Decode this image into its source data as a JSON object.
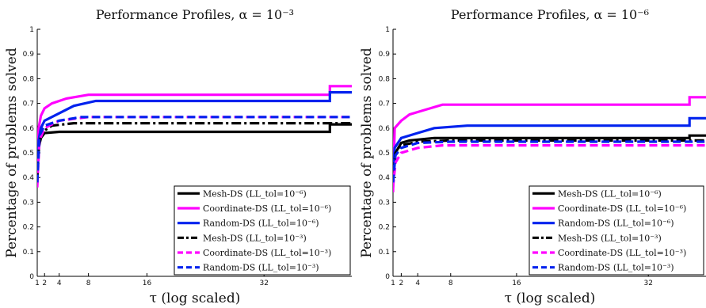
{
  "chart_data": [
    {
      "type": "line",
      "title": "Performance Profiles, α = 10⁻³",
      "xlabel": "τ (log scaled)",
      "ylabel": "Percentage of problems solved",
      "x_ticks": [
        1,
        2,
        4,
        8,
        16,
        32
      ],
      "y_ticks": [
        "0",
        "0.1",
        "0.2",
        "0.3",
        "0.4",
        "0.5",
        "0.6",
        "0.7",
        "0.8",
        "0.9",
        "1"
      ],
      "xlim": [
        1,
        44
      ],
      "ylim": [
        0,
        1
      ],
      "x_scale": "linear-ticks",
      "legend_position": "bottom-right",
      "series": [
        {
          "name": "Mesh-DS (LL_tol=10⁻⁶)",
          "color": "#000000",
          "dash": "solid",
          "points": [
            [
              1,
              0.4
            ],
            [
              1.2,
              0.52
            ],
            [
              1.5,
              0.56
            ],
            [
              2,
              0.58
            ],
            [
              4,
              0.585
            ],
            [
              41,
              0.585
            ],
            [
              41,
              0.615
            ],
            [
              44,
              0.615
            ]
          ]
        },
        {
          "name": "Coordinate-DS (LL_tol=10⁻⁶)",
          "color": "#ff00ff",
          "dash": "solid",
          "points": [
            [
              1,
              0.36
            ],
            [
              1.2,
              0.6
            ],
            [
              1.5,
              0.65
            ],
            [
              2,
              0.68
            ],
            [
              3,
              0.7
            ],
            [
              5,
              0.72
            ],
            [
              8,
              0.735
            ],
            [
              41,
              0.735
            ],
            [
              41,
              0.77
            ],
            [
              44,
              0.77
            ]
          ]
        },
        {
          "name": "Random-DS (LL_tol=10⁻⁶)",
          "color": "#0022ee",
          "dash": "solid",
          "points": [
            [
              1,
              0.38
            ],
            [
              1.2,
              0.55
            ],
            [
              1.5,
              0.6
            ],
            [
              2,
              0.63
            ],
            [
              4,
              0.66
            ],
            [
              6,
              0.69
            ],
            [
              9,
              0.71
            ],
            [
              41,
              0.71
            ],
            [
              41,
              0.745
            ],
            [
              44,
              0.745
            ]
          ]
        },
        {
          "name": "Mesh-DS (LL_tol=10⁻³)",
          "color": "#000000",
          "dash": "dashdot",
          "points": [
            [
              1,
              0.4
            ],
            [
              1.3,
              0.55
            ],
            [
              2,
              0.59
            ],
            [
              3,
              0.61
            ],
            [
              6,
              0.62
            ],
            [
              44,
              0.62
            ]
          ]
        },
        {
          "name": "Coordinate-DS (LL_tol=10⁻³)",
          "color": "#ff00ff",
          "dash": "dashed",
          "points": [
            [
              1,
              0.37
            ],
            [
              1.3,
              0.55
            ],
            [
              2,
              0.6
            ],
            [
              4,
              0.63
            ],
            [
              8,
              0.645
            ],
            [
              44,
              0.645
            ]
          ]
        },
        {
          "name": "Random-DS (LL_tol=10⁻³)",
          "color": "#0022ee",
          "dash": "dashed",
          "points": [
            [
              1,
              0.38
            ],
            [
              1.3,
              0.57
            ],
            [
              2,
              0.61
            ],
            [
              4,
              0.63
            ],
            [
              7,
              0.645
            ],
            [
              44,
              0.645
            ]
          ]
        }
      ]
    },
    {
      "type": "line",
      "title": "Performance Profiles, α = 10⁻⁶",
      "xlabel": "τ (log scaled)",
      "ylabel": "Percentage of problems solved",
      "x_ticks": [
        1,
        2,
        4,
        8,
        16,
        32
      ],
      "y_ticks": [
        "0",
        "0.1",
        "0.2",
        "0.3",
        "0.4",
        "0.5",
        "0.6",
        "0.7",
        "0.8",
        "0.9",
        "1"
      ],
      "xlim": [
        1,
        39
      ],
      "ylim": [
        0,
        1
      ],
      "x_scale": "linear-ticks",
      "legend_position": "bottom-right",
      "series": [
        {
          "name": "Mesh-DS (LL_tol=10⁻⁶)",
          "color": "#000000",
          "dash": "solid",
          "points": [
            [
              1,
              0.4
            ],
            [
              1.3,
              0.5
            ],
            [
              2,
              0.54
            ],
            [
              3,
              0.55
            ],
            [
              6,
              0.56
            ],
            [
              37,
              0.56
            ],
            [
              37,
              0.57
            ],
            [
              39,
              0.57
            ]
          ]
        },
        {
          "name": "Coordinate-DS (LL_tol=10⁻⁶)",
          "color": "#ff00ff",
          "dash": "solid",
          "points": [
            [
              1,
              0.34
            ],
            [
              1.2,
              0.6
            ],
            [
              2,
              0.63
            ],
            [
              3,
              0.655
            ],
            [
              5,
              0.675
            ],
            [
              7,
              0.695
            ],
            [
              37,
              0.695
            ],
            [
              37,
              0.725
            ],
            [
              39,
              0.725
            ]
          ]
        },
        {
          "name": "Random-DS (LL_tol=10⁻⁶)",
          "color": "#0022ee",
          "dash": "solid",
          "points": [
            [
              1,
              0.37
            ],
            [
              1.2,
              0.52
            ],
            [
              2,
              0.56
            ],
            [
              4,
              0.58
            ],
            [
              6,
              0.6
            ],
            [
              10,
              0.61
            ],
            [
              37,
              0.61
            ],
            [
              37,
              0.64
            ],
            [
              39,
              0.64
            ]
          ]
        },
        {
          "name": "Mesh-DS (LL_tol=10⁻³)",
          "color": "#000000",
          "dash": "dashdot",
          "points": [
            [
              1,
              0.4
            ],
            [
              1.3,
              0.5
            ],
            [
              2,
              0.53
            ],
            [
              4,
              0.545
            ],
            [
              8,
              0.55
            ],
            [
              39,
              0.55
            ]
          ]
        },
        {
          "name": "Coordinate-DS (LL_tol=10⁻³)",
          "color": "#ff00ff",
          "dash": "dashed",
          "points": [
            [
              1,
              0.36
            ],
            [
              1.3,
              0.46
            ],
            [
              2,
              0.5
            ],
            [
              4,
              0.52
            ],
            [
              7,
              0.53
            ],
            [
              39,
              0.53
            ]
          ]
        },
        {
          "name": "Random-DS (LL_tol=10⁻³)",
          "color": "#0022ee",
          "dash": "dashed",
          "points": [
            [
              1,
              0.38
            ],
            [
              1.3,
              0.49
            ],
            [
              2,
              0.52
            ],
            [
              4,
              0.54
            ],
            [
              8,
              0.545
            ],
            [
              39,
              0.545
            ]
          ]
        }
      ]
    }
  ]
}
